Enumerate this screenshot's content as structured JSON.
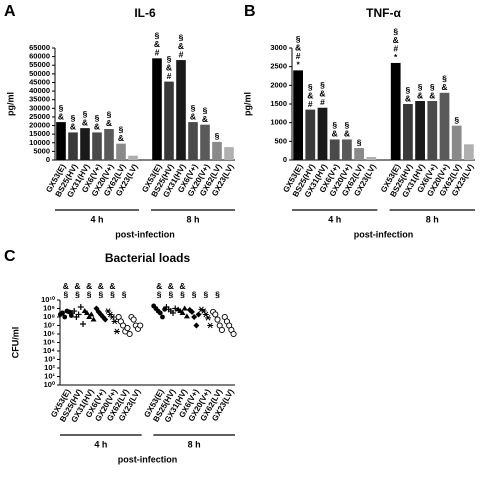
{
  "chart_data": [
    {
      "type": "bar",
      "panel": "A",
      "title": "IL-6",
      "ylabel": "pg/ml",
      "xlabel": "post-infection",
      "categories": [
        "GX53(E)",
        "BS25(HV)",
        "GX31(HV)",
        "GX6(V+)",
        "GX20(V+)",
        "GX62(LV)",
        "GX23(LV)"
      ],
      "colors": [
        "#000000",
        "#3a3a3a",
        "#1a1a1a",
        "#4a4a4a",
        "#5a5a5a",
        "#8a8a8a",
        "#b0b0b0"
      ],
      "series": [
        {
          "name": "4 h",
          "values": [
            22000,
            16000,
            18500,
            16000,
            18000,
            9500,
            2500
          ],
          "annotations": [
            [
              "§",
              "&"
            ],
            [
              "§",
              "&"
            ],
            [
              "§",
              "&"
            ],
            [
              "§",
              "&"
            ],
            [
              "§",
              "&"
            ],
            [
              "§",
              "&"
            ],
            []
          ]
        },
        {
          "name": "8 h",
          "values": [
            59000,
            45500,
            58000,
            22000,
            20500,
            10500,
            7500
          ],
          "annotations": [
            [
              "§",
              "&",
              "#"
            ],
            [
              "§",
              "&",
              "#"
            ],
            [
              "§",
              "&",
              "#"
            ],
            [
              "§",
              "&"
            ],
            [
              "§",
              "&"
            ],
            [
              "§"
            ],
            []
          ]
        }
      ],
      "ylim": [
        0,
        65000
      ],
      "yticks": [
        0,
        5000,
        10000,
        15000,
        20000,
        25000,
        30000,
        35000,
        40000,
        45000,
        50000,
        55000,
        60000,
        65000
      ]
    },
    {
      "type": "bar",
      "panel": "B",
      "title": "TNF-α",
      "ylabel": "pg/ml",
      "xlabel": "post-infection",
      "categories": [
        "GX53(E)",
        "BS25(HV)",
        "GX31(HV)",
        "GX6(V+)",
        "GX20(V+)",
        "GX62(LV)",
        "GX23(LV)"
      ],
      "colors": [
        "#000000",
        "#3a3a3a",
        "#1a1a1a",
        "#4a4a4a",
        "#5a5a5a",
        "#8a8a8a",
        "#b0b0b0"
      ],
      "series": [
        {
          "name": "4 h",
          "values": [
            2400,
            1350,
            1400,
            550,
            550,
            320,
            80
          ],
          "annotations": [
            [
              "§",
              "&",
              "#",
              "*"
            ],
            [
              "§",
              "&",
              "#"
            ],
            [
              "§",
              "&",
              "#"
            ],
            [
              "§",
              "&"
            ],
            [
              "§",
              "&"
            ],
            [
              "§"
            ],
            []
          ]
        },
        {
          "name": "8 h",
          "values": [
            2600,
            1500,
            1580,
            1580,
            1800,
            920,
            420
          ],
          "annotations": [
            [
              "§",
              "&",
              "#",
              "*"
            ],
            [
              "§",
              "&"
            ],
            [
              "§",
              "&"
            ],
            [
              "§",
              "&"
            ],
            [
              "§",
              "&"
            ],
            [
              "§"
            ],
            []
          ]
        }
      ],
      "ylim": [
        0,
        3000
      ],
      "yticks": [
        0,
        500,
        1000,
        1500,
        2000,
        2500,
        3000
      ]
    },
    {
      "type": "scatter",
      "panel": "C",
      "title": "Bacterial loads",
      "ylabel": "CFU/ml",
      "xlabel": "post-infection",
      "categories": [
        "GX53(E)",
        "BS25(HV)",
        "GX31(HV)",
        "GX6(V+)",
        "GX20(V+)",
        "GX62(LV)",
        "GX23(LV)"
      ],
      "markers": [
        "circle",
        "plus",
        "triangle",
        "diamond",
        "star",
        "open-circle",
        "open-circle"
      ],
      "log": true,
      "series": [
        {
          "name": "4 h",
          "values": [
            [
              200000000,
              300000000,
              100000000,
              500000000,
              400000000,
              150000000
            ],
            [
              300000000,
              500000000,
              100000000,
              200000000,
              1500000000,
              15000000
            ],
            [
              500000000,
              300000000,
              100000000,
              200000000,
              50000000
            ],
            [
              1000000000,
              400000000,
              200000000,
              100000000,
              50000000
            ],
            [
              500000000,
              200000000,
              100000000,
              30000000,
              2000000
            ],
            [
              100000000,
              30000000,
              10000000,
              2000000,
              5000000,
              1000000
            ],
            [
              100000000,
              50000000,
              10000000,
              4000000,
              10000000
            ]
          ],
          "annotations": [
            [
              "&",
              "§"
            ],
            [
              "&",
              "§"
            ],
            [
              "&",
              "§"
            ],
            [
              "&",
              "§"
            ],
            [
              "&",
              "§"
            ],
            [
              "§"
            ],
            []
          ]
        },
        {
          "name": "8 h",
          "values": [
            [
              2000000000,
              1000000000,
              500000000,
              300000000,
              100000000,
              800000000
            ],
            [
              1500000000,
              800000000,
              500000000,
              300000000,
              1000000000
            ],
            [
              800000000,
              500000000,
              300000000,
              1000000000,
              120000000
            ],
            [
              700000000,
              400000000,
              100000000,
              10000000,
              200000000
            ],
            [
              800000000,
              500000000,
              200000000,
              80000000,
              10000000
            ],
            [
              400000000,
              200000000,
              50000000,
              10000000,
              3000000
            ],
            [
              100000000,
              30000000,
              10000000,
              3000000,
              1000000
            ]
          ],
          "annotations": [
            [
              "&",
              "§"
            ],
            [
              "&",
              "§"
            ],
            [
              "&",
              "§"
            ],
            [
              "§"
            ],
            [
              "§"
            ],
            [
              "§"
            ],
            []
          ]
        }
      ],
      "ylim": [
        1,
        10000000000
      ],
      "yticks": [
        {
          "value": 1,
          "label": "10⁰"
        },
        {
          "value": 10,
          "label": "10¹"
        },
        {
          "value": 100,
          "label": "10²"
        },
        {
          "value": 1000,
          "label": "10³"
        },
        {
          "value": 10000,
          "label": "10⁴"
        },
        {
          "value": 100000,
          "label": "10⁵"
        },
        {
          "value": 1000000,
          "label": "10⁶"
        },
        {
          "value": 10000000,
          "label": "10⁷"
        },
        {
          "value": 100000000,
          "label": "10⁸"
        },
        {
          "value": 1000000000,
          "label": "10⁹"
        },
        {
          "value": 10000000000,
          "label": "10¹⁰"
        }
      ]
    }
  ]
}
